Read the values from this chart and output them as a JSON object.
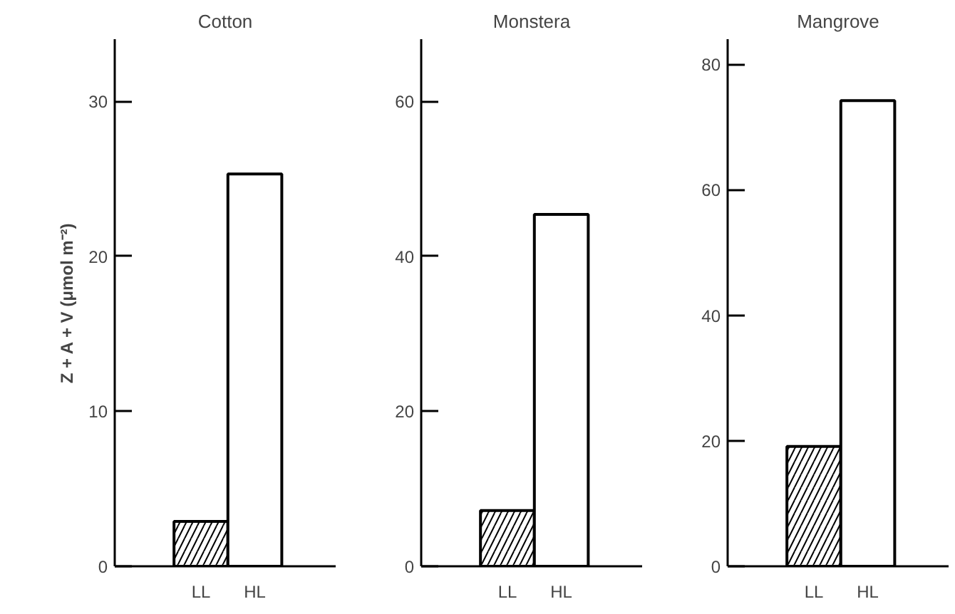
{
  "chart_data": [
    {
      "type": "bar",
      "title": "Cotton",
      "ylabel": "Z + A + V (μmol m⁻²)",
      "categories": [
        "LL",
        "HL"
      ],
      "values": [
        2.9,
        25.3
      ],
      "colors": [
        "#ffffff",
        "#ffffff"
      ],
      "ylim": [
        0,
        34
      ],
      "yticks": [
        0,
        10,
        20,
        30
      ],
      "grid": false
    },
    {
      "type": "bar",
      "title": "Monstera",
      "categories": [
        "LL",
        "HL"
      ],
      "values": [
        7.2,
        45.4
      ],
      "colors": [
        "#ffffff",
        "#ffffff"
      ],
      "ylim": [
        0,
        68
      ],
      "yticks": [
        0,
        20,
        40,
        60
      ],
      "grid": false
    },
    {
      "type": "bar",
      "title": "Mangrove",
      "categories": [
        "LL",
        "HL"
      ],
      "values": [
        19.1,
        74.2
      ],
      "colors": [
        "#ffffff",
        "#ffffff"
      ],
      "ylim": [
        0,
        84
      ],
      "yticks": [
        0,
        20,
        40,
        60,
        80
      ],
      "grid": false
    }
  ]
}
